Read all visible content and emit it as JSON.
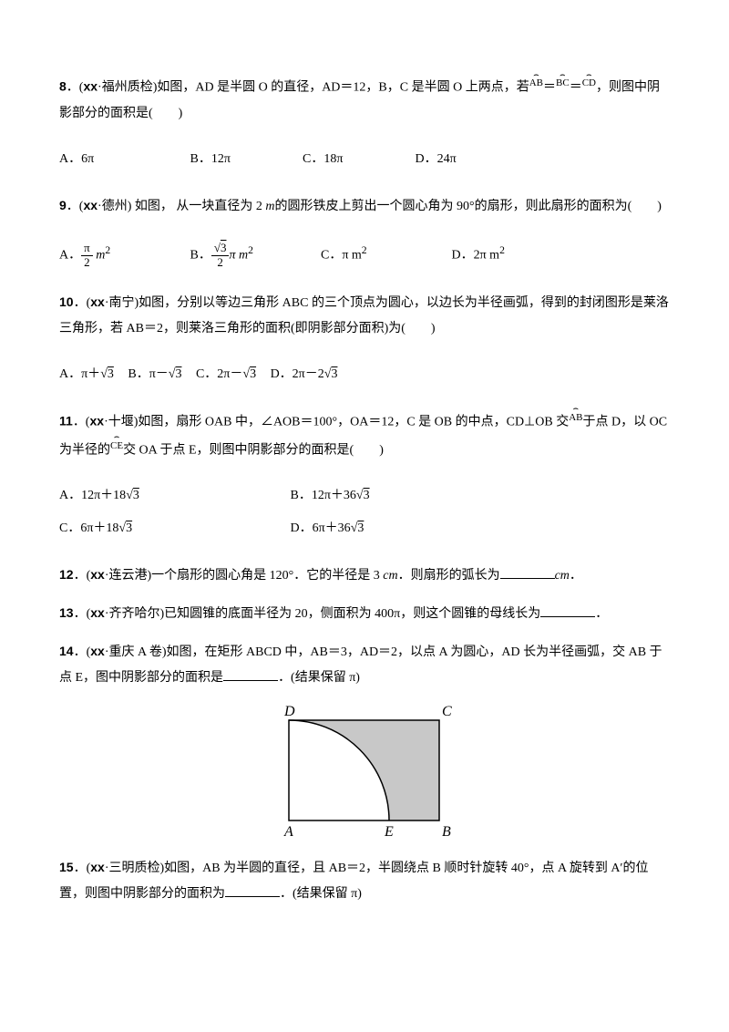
{
  "q8": {
    "number": "8",
    "prefix": "．(",
    "src_bold": "xx",
    "src": "·福州质检)如图，AD 是半圆 O 的直径，AD＝12，B，C 是半圆 O 上两点，若",
    "arc1": "AB",
    "eq1": "＝",
    "arc2": "BC",
    "eq2": "＝",
    "arc3": "CD",
    "tail": "，则图中阴影部分的面积是(　　)",
    "optA": "A．6π",
    "optB": "B．12π",
    "optC": "C．18π",
    "optD": "D．24π"
  },
  "q9": {
    "number": "9",
    "prefix": "．(",
    "src_bold": "xx",
    "src": "·德州) 如图， 从一块直径为 2 ",
    "m": "m",
    "src2": "的圆形铁皮上剪出一个圆心角为 90°的扇形，则此扇形的面积为(　　)",
    "optA_pre": "A．",
    "optA_num": "π",
    "optA_den": "2",
    "optA_post": " m",
    "optA_sup": "2",
    "optB_pre": "B．",
    "optB_num": "√3",
    "optB_den": "2",
    "optB_post": "π m",
    "optB_sup": "2",
    "optC": "C．π m",
    "optC_sup": "2",
    "optD": "D．2π m",
    "optD_sup": "2"
  },
  "q10": {
    "number": "10",
    "prefix": "．(",
    "src_bold": "xx",
    "src": "·南宁)如图，分别以等边三角形 ABC 的三个顶点为圆心，以边长为半径画弧，得到的封闭图形是莱洛三角形，若 AB＝2，则莱洛三角形的面积(即阴影部分面积)为(　　)",
    "optA": "A．π＋√3",
    "optB": "B．π－√3",
    "optC": "C．2π－√3",
    "optD": "D．2π－2√3"
  },
  "q11": {
    "number": "11",
    "prefix": "．(",
    "src_bold": "xx",
    "src": "·十堰)如图，扇形 OAB 中，∠AOB＝100°，OA＝12，C 是 OB 的中点，CD⊥OB 交",
    "arc1": "AB",
    "mid": "于点 D，以 OC 为半径的",
    "arc2": "CE",
    "tail": "交 OA 于点 E，则图中阴影部分的面积是(　　)",
    "optA": "A．12π＋18√3",
    "optB": "B．12π＋36√3",
    "optC": "C．6π＋18√3",
    "optD": "D．6π＋36√3"
  },
  "q12": {
    "number": "12",
    "prefix": "．(",
    "src_bold": "xx",
    "src": "·连云港)一个扇形的圆心角是 120°．它的半径是 3 ",
    "cm": "cm",
    "tail1": "．则扇形的弧长为",
    "tail2": "cm",
    "tail3": "．"
  },
  "q13": {
    "number": "13",
    "prefix": "．(",
    "src_bold": "xx",
    "src": "·齐齐哈尔)已知圆锥的底面半径为 20，侧面积为 400π，则这个圆锥的母线长为",
    "tail": "．"
  },
  "q14": {
    "number": "14",
    "prefix": "．(",
    "src_bold": "xx",
    "src": "·重庆 A 卷)如图，在矩形 ABCD 中，AB＝3，AD＝2，以点 A 为圆心，AD 长为半径画弧，交 AB 于点 E，图中阴影部分的面积是",
    "tail": "．(结果保留 π)"
  },
  "q15": {
    "number": "15",
    "prefix": "．(",
    "src_bold": "xx",
    "src": "·三明质检)如图，AB 为半圆的直径，且 AB＝2，半圆绕点 B 顺时针旋转 40°，点 A 旋转到 A′的位置，则图中阴影部分的面积为",
    "tail": "．(结果保留 π)"
  },
  "figure": {
    "labels": {
      "D": "D",
      "C": "C",
      "A": "A",
      "E": "E",
      "B": "B"
    },
    "stroke": "#000000",
    "fill_shade": "#c8c8c8",
    "fill_bg": "#ffffff"
  }
}
